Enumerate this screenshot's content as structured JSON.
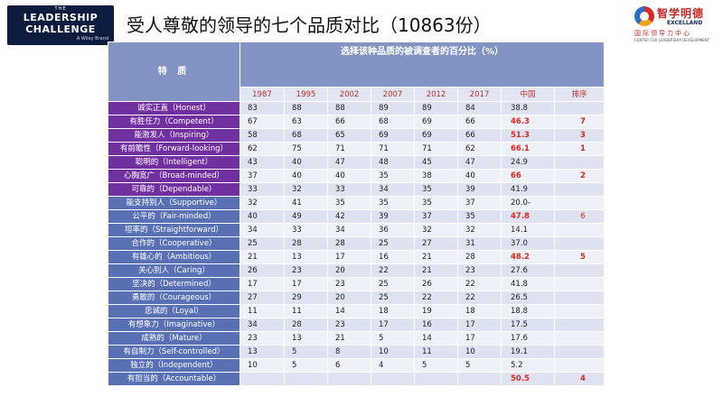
{
  "header": {
    "logo_left": {
      "the": "THE",
      "line1": "LEADERSHIP",
      "line2": "CHALLENGE",
      "sub": "A Wiley Brand"
    },
    "title": "受人尊敬的领导的七个品质对比（10863份）",
    "logo_right": {
      "cn": "智学明德",
      "en": "EXCELLAND",
      "cn_sub": "国际领导力中心",
      "en_sub": "CENTER FOR LEADERSHIP DEVELOPMENT"
    }
  },
  "table": {
    "trait_header": "特  质",
    "span_header": "选择该种品质的被调查者的百分比（%）",
    "years": [
      "1987",
      "1995",
      "2002",
      "2007",
      "2012",
      "2017",
      "中国",
      "排序"
    ],
    "rows": [
      {
        "trait": "诚实正直（Honest）",
        "highlight": true,
        "vals": [
          "83",
          "88",
          "88",
          "89",
          "89",
          "84"
        ],
        "china": "38.8",
        "china_red": false,
        "rank": "",
        "rank_light": false
      },
      {
        "trait": "有胜任力（Competent）",
        "highlight": true,
        "vals": [
          "67",
          "63",
          "66",
          "68",
          "69",
          "66"
        ],
        "china": "46.3",
        "china_red": true,
        "rank": "7",
        "rank_light": false
      },
      {
        "trait": "能激发人（Inspiring）",
        "highlight": true,
        "vals": [
          "58",
          "68",
          "65",
          "69",
          "69",
          "66"
        ],
        "china": "51.3",
        "china_red": true,
        "rank": "3",
        "rank_light": false
      },
      {
        "trait": "有前瞻性（Forward-looking）",
        "highlight": true,
        "vals": [
          "62",
          "75",
          "71",
          "71",
          "71",
          "62"
        ],
        "china": "66.1",
        "china_red": true,
        "rank": "1",
        "rank_light": false
      },
      {
        "trait": "聪明的（Intelligent）",
        "highlight": true,
        "vals": [
          "43",
          "40",
          "47",
          "48",
          "45",
          "47"
        ],
        "china": "24.9",
        "china_red": false,
        "rank": "",
        "rank_light": false
      },
      {
        "trait": "心胸宽广（Broad-minded）",
        "highlight": true,
        "vals": [
          "37",
          "40",
          "40",
          "35",
          "38",
          "40"
        ],
        "china": "66",
        "china_red": true,
        "rank": "2",
        "rank_light": false
      },
      {
        "trait": "可靠的（Dependable）",
        "highlight": true,
        "vals": [
          "33",
          "32",
          "33",
          "34",
          "35",
          "39"
        ],
        "china": "41.9",
        "china_red": false,
        "rank": "",
        "rank_light": false
      },
      {
        "trait": "能支持别人（Supportive）",
        "highlight": false,
        "vals": [
          "32",
          "41",
          "35",
          "35",
          "35",
          "37"
        ],
        "china": "20.0-",
        "china_red": false,
        "rank": "",
        "rank_light": false
      },
      {
        "trait": "公平的（Fair-minded）",
        "highlight": false,
        "vals": [
          "40",
          "49",
          "42",
          "39",
          "37",
          "35"
        ],
        "china": "47.8",
        "china_red": true,
        "rank": "6",
        "rank_light": true
      },
      {
        "trait": "坦率的（Straightforward）",
        "highlight": false,
        "vals": [
          "34",
          "33",
          "34",
          "36",
          "32",
          "32"
        ],
        "china": "14.1",
        "china_red": false,
        "rank": "",
        "rank_light": false
      },
      {
        "trait": "合作的（Cooperative）",
        "highlight": false,
        "vals": [
          "25",
          "28",
          "28",
          "25",
          "27",
          "31"
        ],
        "china": "37.0",
        "china_red": false,
        "rank": "",
        "rank_light": false
      },
      {
        "trait": "有雄心的（Ambitious）",
        "highlight": false,
        "vals": [
          "21",
          "13",
          "17",
          "16",
          "21",
          "28"
        ],
        "china": "48.2",
        "china_red": true,
        "rank": "5",
        "rank_light": false
      },
      {
        "trait": "关心别人（Caring）",
        "highlight": false,
        "vals": [
          "26",
          "23",
          "20",
          "22",
          "21",
          "23"
        ],
        "china": "27.6",
        "china_red": false,
        "rank": "",
        "rank_light": false
      },
      {
        "trait": "坚决的（Determined）",
        "highlight": false,
        "vals": [
          "17",
          "17",
          "23",
          "25",
          "26",
          "22"
        ],
        "china": "41.8",
        "china_red": false,
        "rank": "",
        "rank_light": false
      },
      {
        "trait": "勇敢的（Courageous）",
        "highlight": false,
        "vals": [
          "27",
          "29",
          "20",
          "25",
          "22",
          "22"
        ],
        "china": "26.5",
        "china_red": false,
        "rank": "",
        "rank_light": false
      },
      {
        "trait": "忠诚的（Loyal）",
        "highlight": false,
        "vals": [
          "11",
          "11",
          "14",
          "18",
          "19",
          "18"
        ],
        "china": "18.8",
        "china_red": false,
        "rank": "",
        "rank_light": false
      },
      {
        "trait": "有想象力（Imaginative）",
        "highlight": false,
        "vals": [
          "34",
          "28",
          "23",
          "17",
          "16",
          "17"
        ],
        "china": "17.5",
        "china_red": false,
        "rank": "",
        "rank_light": false
      },
      {
        "trait": "成熟的（Mature）",
        "highlight": false,
        "vals": [
          "23",
          "13",
          "21",
          "5",
          "14",
          "17"
        ],
        "china": "17.6",
        "china_red": false,
        "rank": "",
        "rank_light": false
      },
      {
        "trait": "有自制力（Self-controlled）",
        "highlight": false,
        "vals": [
          "13",
          "5",
          "8",
          "10",
          "11",
          "10"
        ],
        "china": "19.1",
        "china_red": false,
        "rank": "",
        "rank_light": false
      },
      {
        "trait": "独立的（Independent）",
        "highlight": false,
        "vals": [
          "10",
          "5",
          "6",
          "4",
          "5",
          "5"
        ],
        "china": "5.2",
        "china_red": false,
        "rank": "",
        "rank_light": false
      },
      {
        "trait": "有担当的（Accountable）",
        "highlight": false,
        "vals": [
          "",
          "",
          "",
          "",
          "",
          ""
        ],
        "china": "50.5",
        "china_red": true,
        "rank": "4",
        "rank_light": false
      }
    ]
  }
}
